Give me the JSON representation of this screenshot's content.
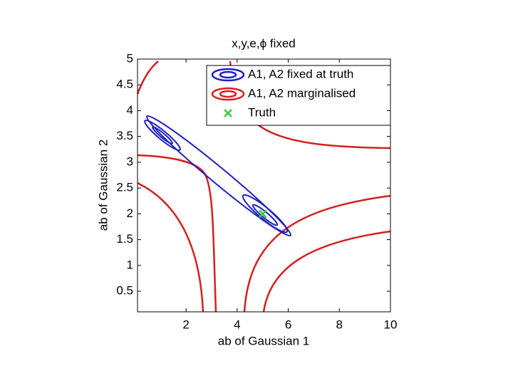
{
  "chart_data": {
    "type": "contour",
    "title": "x,y,e,ϕ fixed",
    "xlabel": "ab of Gaussian 1",
    "ylabel": "ab of Gaussian 2",
    "xlim": [
      0.1,
      10
    ],
    "ylim": [
      0.1,
      5
    ],
    "xticks": [
      2,
      4,
      6,
      8,
      10
    ],
    "yticks": [
      0.5,
      1,
      1.5,
      2,
      2.5,
      3,
      3.5,
      4,
      4.5,
      5
    ],
    "legend_entries": [
      {
        "name": "A1, A2 fixed at truth",
        "color": "#1f1fbf"
      },
      {
        "name": "A1, A2 marginalised",
        "color": "#d42020"
      },
      {
        "name": "Truth",
        "color": "#33cc33"
      }
    ],
    "truth": {
      "x": 5,
      "y": 2
    }
  }
}
